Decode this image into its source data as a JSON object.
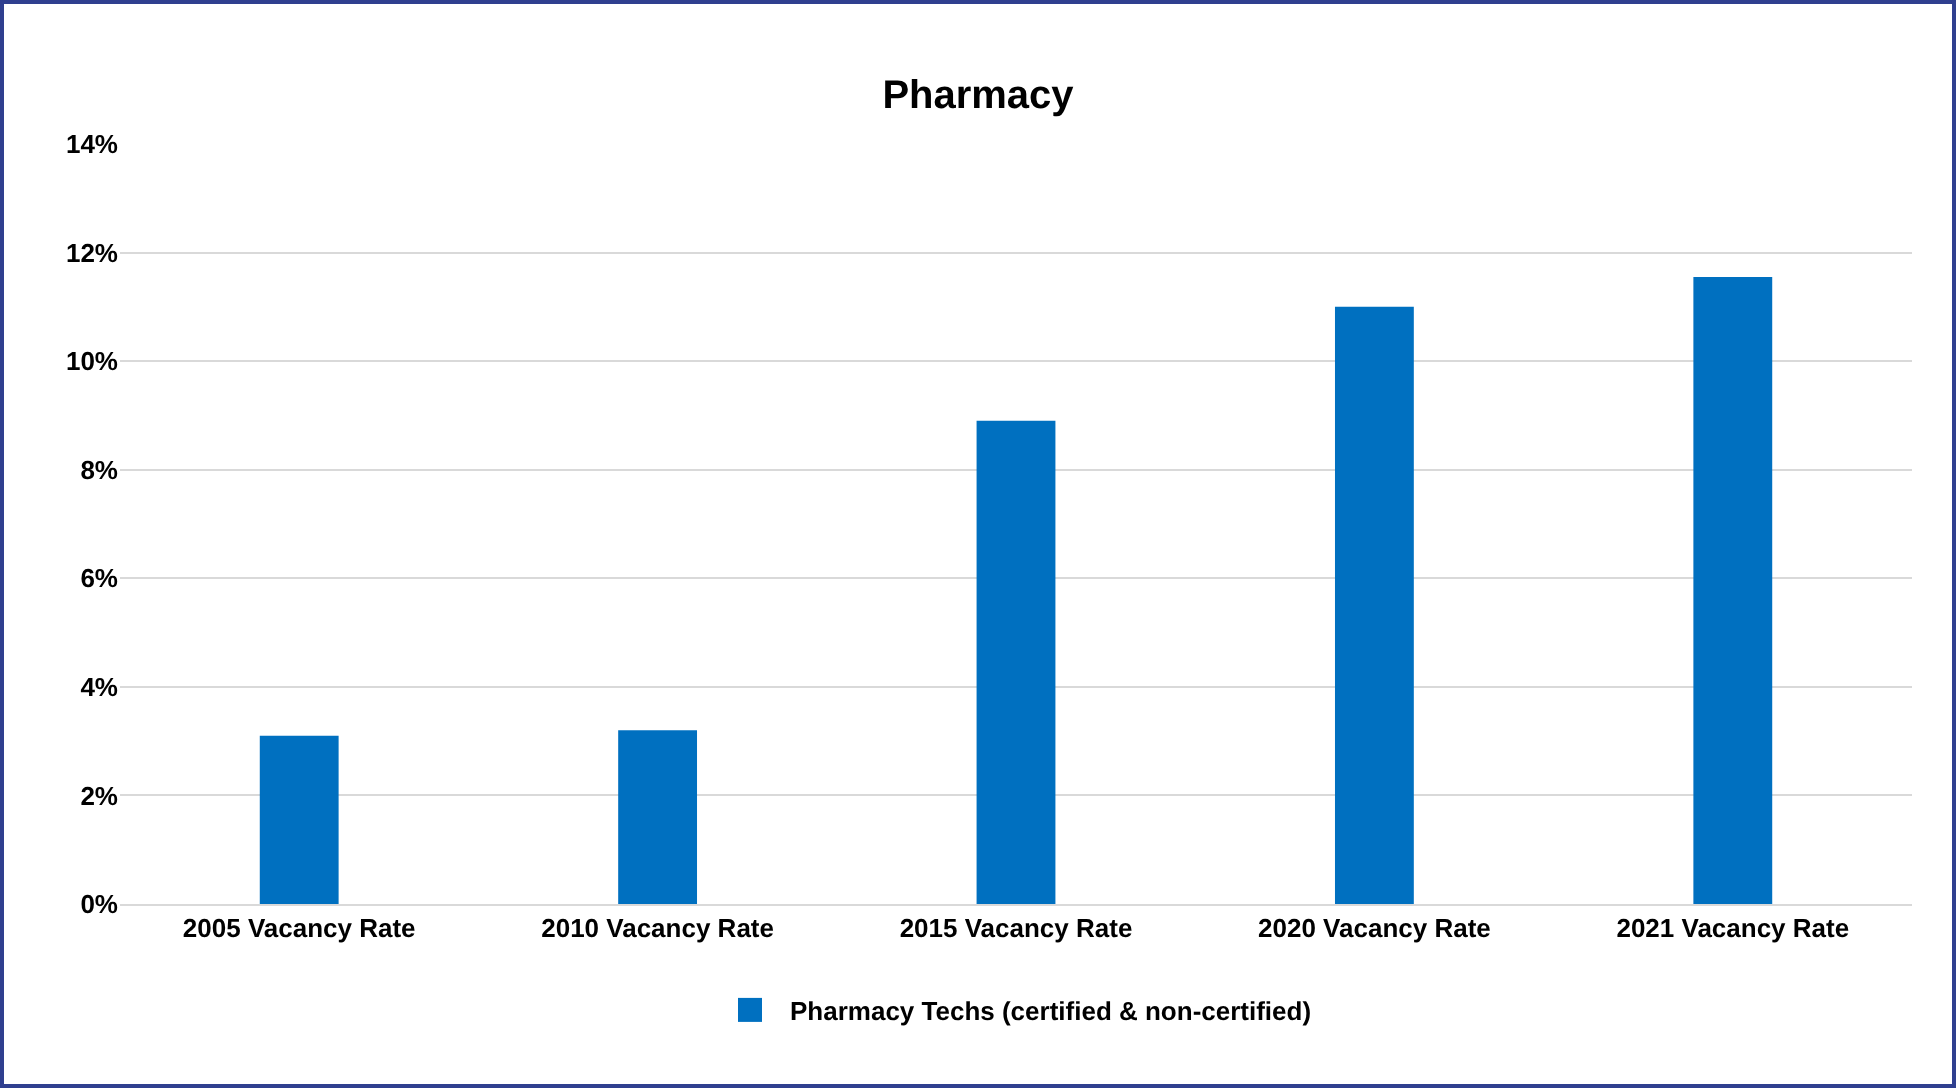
{
  "chart_data": {
    "type": "bar",
    "title": "Pharmacy",
    "categories": [
      "2005 Vacancy Rate",
      "2010 Vacancy Rate",
      "2015 Vacancy Rate",
      "2020 Vacancy Rate",
      "2021 Vacancy Rate"
    ],
    "series": [
      {
        "name": "Pharmacy Techs (certified & non-certified)",
        "color": "#0070c0",
        "values": [
          3.1,
          3.2,
          8.9,
          11.0,
          11.55
        ]
      }
    ],
    "ylim": [
      0,
      14
    ],
    "yticks": [
      {
        "value": 0,
        "label": "0%"
      },
      {
        "value": 2,
        "label": "2%"
      },
      {
        "value": 4,
        "label": "4%"
      },
      {
        "value": 6,
        "label": "6%"
      },
      {
        "value": 8,
        "label": "8%"
      },
      {
        "value": 10,
        "label": "10%"
      },
      {
        "value": 12,
        "label": "12%"
      },
      {
        "value": 14,
        "label": "14%"
      }
    ],
    "grid": "y",
    "legend": "bottom"
  }
}
